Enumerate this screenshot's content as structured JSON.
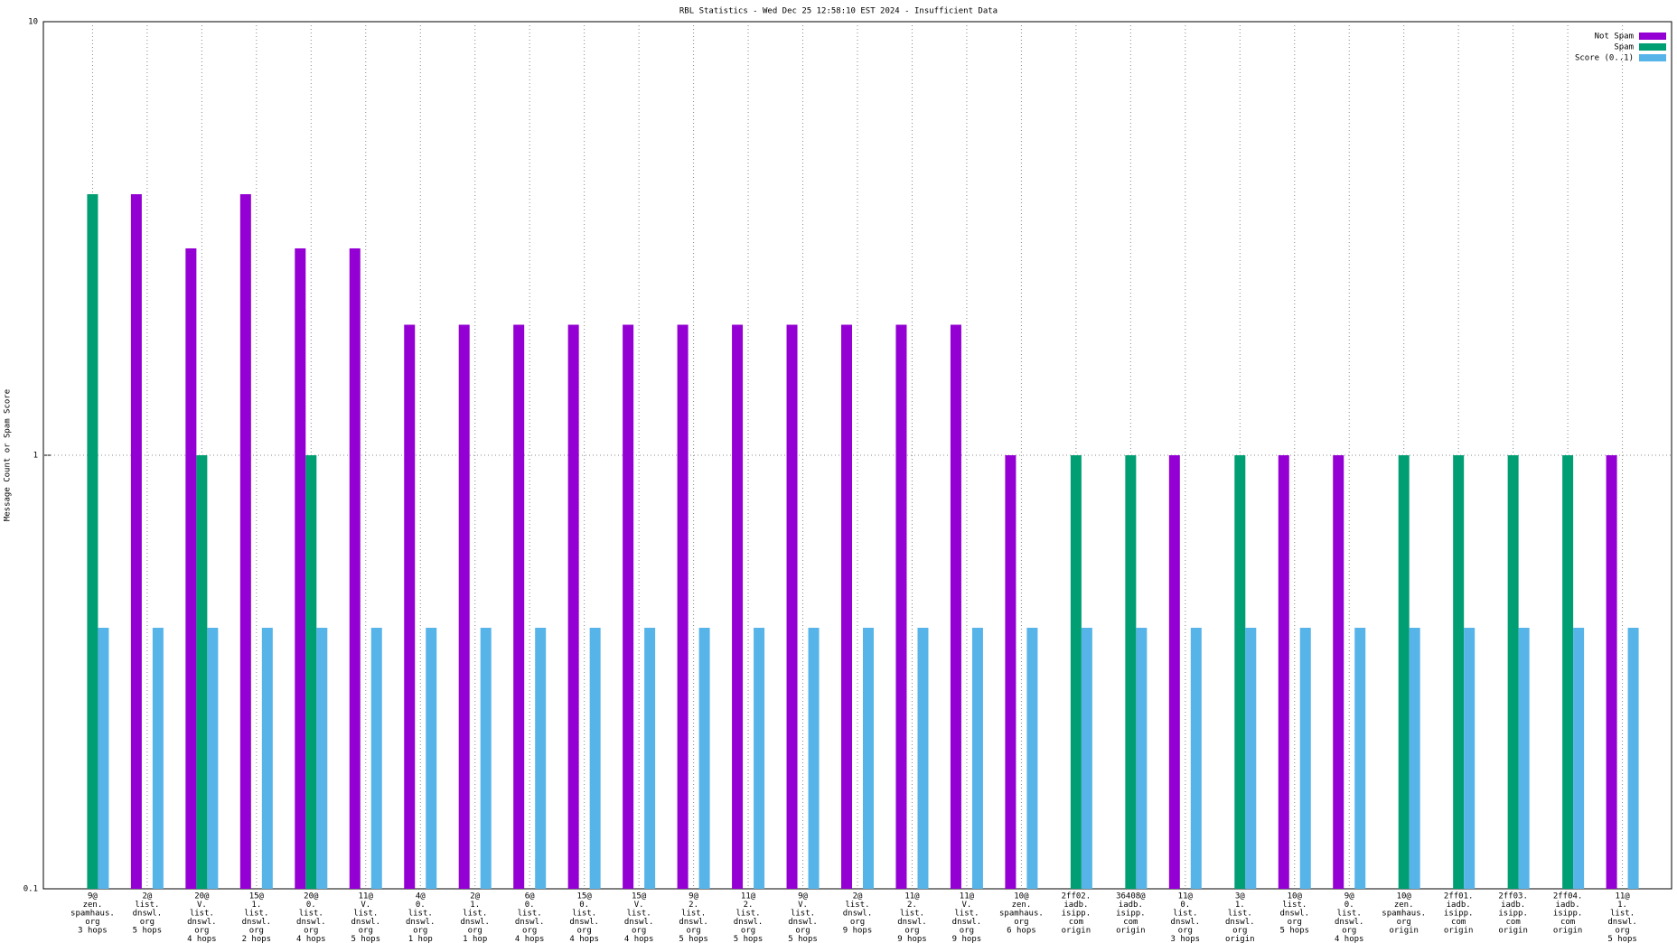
{
  "chart_data": {
    "type": "bar",
    "title": "RBL Statistics - Wed Dec 25 12:58:10 EST 2024 - Insufficient Data",
    "y_label": "Message Count or Spam Score",
    "log_scale": true,
    "grid": true,
    "legend_position": "top-right",
    "ylim": [
      0.1,
      10
    ],
    "yticks": [
      {
        "value": 0.1,
        "label": "0.1"
      },
      1,
      10
    ],
    "categories": [
      [
        "9@",
        "zen.",
        "spamhaus.",
        "org",
        "3 hops"
      ],
      [
        "2@",
        "list.",
        "dnswl.",
        "org",
        "5 hops"
      ],
      [
        "20@",
        "V.",
        "list.",
        "dnswl.",
        "org",
        "4 hops"
      ],
      [
        "15@",
        "1.",
        "list.",
        "dnswl.",
        "org",
        "2 hops"
      ],
      [
        "20@",
        "0.",
        "list.",
        "dnswl.",
        "org",
        "4 hops"
      ],
      [
        "11@",
        "V.",
        "list.",
        "dnswl.",
        "org",
        "5 hops"
      ],
      [
        "4@",
        "0.",
        "list.",
        "dnswl.",
        "org",
        "1 hop"
      ],
      [
        "2@",
        "1.",
        "list.",
        "dnswl.",
        "org",
        "1 hop"
      ],
      [
        "6@",
        "0.",
        "list.",
        "dnswl.",
        "org",
        "4 hops"
      ],
      [
        "15@",
        "0.",
        "list.",
        "dnswl.",
        "org",
        "4 hops"
      ],
      [
        "15@",
        "V.",
        "list.",
        "dnswl.",
        "org",
        "4 hops"
      ],
      [
        "9@",
        "2.",
        "list.",
        "dnswl.",
        "org",
        "5 hops"
      ],
      [
        "11@",
        "2.",
        "list.",
        "dnswl.",
        "org",
        "5 hops"
      ],
      [
        "9@",
        "V.",
        "list.",
        "dnswl.",
        "org",
        "5 hops"
      ],
      [
        "2@",
        "list.",
        "dnswl.",
        "org",
        "9 hops"
      ],
      [
        "11@",
        "2.",
        "list.",
        "dnswl.",
        "org",
        "9 hops"
      ],
      [
        "11@",
        "V.",
        "list.",
        "dnswl.",
        "org",
        "9 hops"
      ],
      [
        "10@",
        "zen.",
        "spamhaus.",
        "org",
        "6 hops"
      ],
      [
        "2ff02.",
        "iadb.",
        "isipp.",
        "com",
        "origin"
      ],
      [
        "36408@",
        "iadb.",
        "isipp.",
        "com",
        "origin"
      ],
      [
        "11@",
        "0.",
        "list.",
        "dnswl.",
        "org",
        "3 hops"
      ],
      [
        "3@",
        "1.",
        "list.",
        "dnswl.",
        "org",
        "origin"
      ],
      [
        "10@",
        "list.",
        "dnswl.",
        "org",
        "5 hops"
      ],
      [
        "9@",
        "0.",
        "list.",
        "dnswl.",
        "org",
        "4 hops"
      ],
      [
        "10@",
        "zen.",
        "spamhaus.",
        "org",
        "origin"
      ],
      [
        "2ff01.",
        "iadb.",
        "isipp.",
        "com",
        "origin"
      ],
      [
        "2ff03.",
        "iadb.",
        "isipp.",
        "com",
        "origin"
      ],
      [
        "2ff04.",
        "iadb.",
        "isipp.",
        "com",
        "origin"
      ],
      [
        "11@",
        "1.",
        "list.",
        "dnswl.",
        "org",
        "5 hops"
      ]
    ],
    "series": [
      {
        "name": "Not Spam",
        "color": "#9400d3",
        "values": [
          null,
          4,
          3,
          4,
          3,
          3,
          2,
          2,
          2,
          2,
          2,
          2,
          2,
          2,
          2,
          2,
          2,
          1,
          null,
          null,
          1,
          null,
          1,
          1,
          null,
          null,
          null,
          null,
          1
        ]
      },
      {
        "name": "Spam",
        "color": "#009e73",
        "values": [
          4,
          null,
          1,
          null,
          1,
          null,
          null,
          null,
          null,
          null,
          null,
          null,
          null,
          null,
          null,
          null,
          null,
          null,
          1,
          1,
          null,
          1,
          null,
          null,
          1,
          1,
          1,
          1,
          null
        ]
      },
      {
        "name": "Score (0..1)",
        "color": "#56b4e9",
        "values": [
          0.4,
          0.4,
          0.4,
          0.4,
          0.4,
          0.4,
          0.4,
          0.4,
          0.4,
          0.4,
          0.4,
          0.4,
          0.4,
          0.4,
          0.4,
          0.4,
          0.4,
          0.4,
          0.4,
          0.4,
          0.4,
          0.4,
          0.4,
          0.4,
          0.4,
          0.4,
          0.4,
          0.4,
          0.4
        ]
      }
    ]
  }
}
